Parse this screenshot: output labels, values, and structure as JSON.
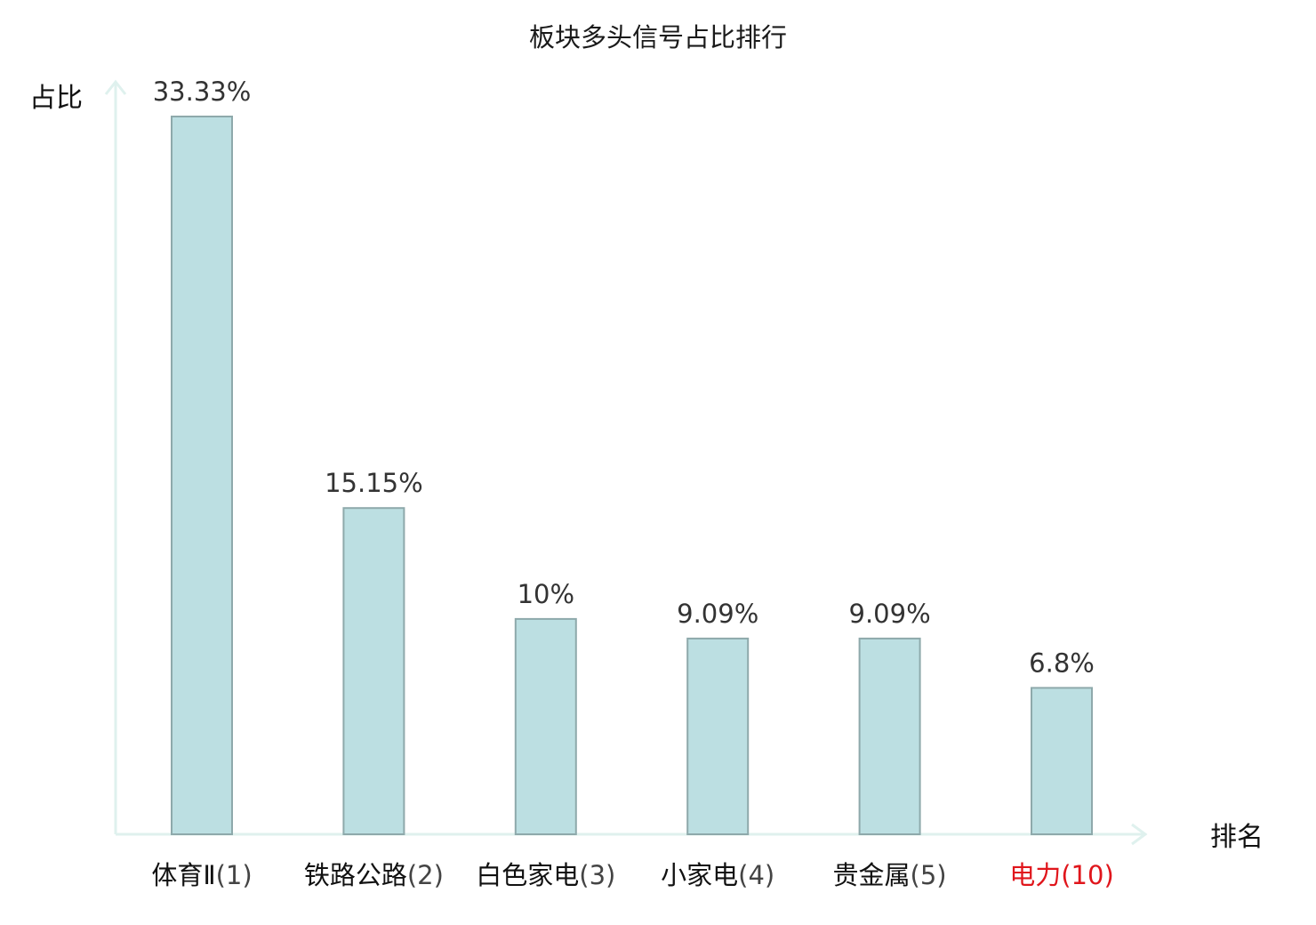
{
  "chart_data": {
    "type": "bar",
    "title": "板块多头信号占比排行",
    "ylabel": "占比",
    "xlabel": "排名",
    "categories": [
      {
        "name": "体育Ⅱ",
        "rank": "(1)",
        "highlight": false
      },
      {
        "name": "铁路公路",
        "rank": "(2)",
        "highlight": false
      },
      {
        "name": "白色家电",
        "rank": "(3)",
        "highlight": false
      },
      {
        "name": "小家电",
        "rank": "(4)",
        "highlight": false
      },
      {
        "name": "贵金属",
        "rank": "(5)",
        "highlight": false
      },
      {
        "name": "电力",
        "rank": "(10)",
        "highlight": true
      }
    ],
    "values": [
      33.33,
      15.15,
      10,
      9.09,
      9.09,
      6.8
    ],
    "value_labels": [
      "33.33%",
      "15.15%",
      "10%",
      "9.09%",
      "9.09%",
      "6.8%"
    ],
    "ylim": [
      0,
      33.33
    ],
    "grid": false,
    "colors": {
      "bar_fill": "#bcdfe2",
      "bar_stroke": "#8ea9ab",
      "axis": "#dff1ee",
      "highlight": "#e0161c"
    }
  }
}
